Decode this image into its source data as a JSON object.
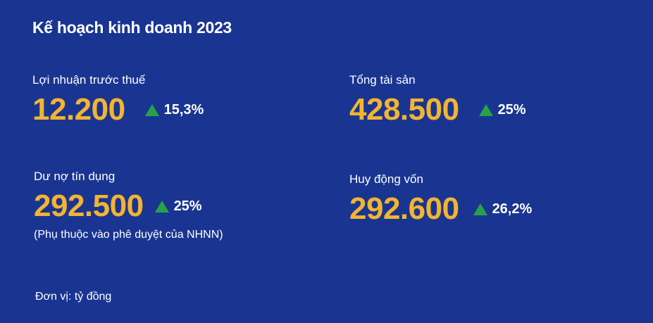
{
  "title": "Kế hoạch kinh doanh 2023",
  "colors": {
    "background": "#1a3591",
    "value": "#f2b431",
    "up_arrow": "#27a24a",
    "text": "#ffffff"
  },
  "metrics": [
    {
      "label": "Lợi nhuận trước thuế",
      "value": "12.200",
      "change": "15,3%",
      "icon": "triangle-up-icon"
    },
    {
      "label": "Tổng tài sản",
      "value": "428.500",
      "change": "25%",
      "icon": "triangle-up-icon"
    },
    {
      "label": "Dư nợ tín dụng",
      "value": "292.500",
      "change": "25%",
      "icon": "triangle-up-icon",
      "note": "(Phụ thuộc vào phê duyệt của NHNN)"
    },
    {
      "label": "Huy động vốn",
      "value": "292.600",
      "change": "26,2%",
      "icon": "triangle-up-icon"
    }
  ],
  "unit": "Đơn vị: tỷ đồng"
}
